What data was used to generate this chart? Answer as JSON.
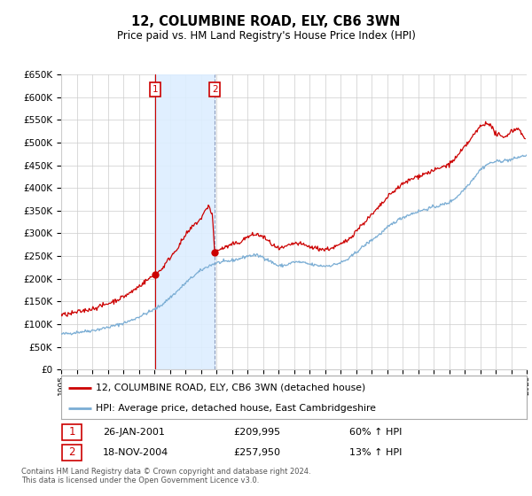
{
  "title": "12, COLUMBINE ROAD, ELY, CB6 3WN",
  "subtitle": "Price paid vs. HM Land Registry's House Price Index (HPI)",
  "legend_line1": "12, COLUMBINE ROAD, ELY, CB6 3WN (detached house)",
  "legend_line2": "HPI: Average price, detached house, East Cambridgeshire",
  "sale1_date": "26-JAN-2001",
  "sale1_price": "£209,995",
  "sale1_hpi": "60% ↑ HPI",
  "sale2_date": "18-NOV-2004",
  "sale2_price": "£257,950",
  "sale2_hpi": "13% ↑ HPI",
  "footnote": "Contains HM Land Registry data © Crown copyright and database right 2024.\nThis data is licensed under the Open Government Licence v3.0.",
  "red_color": "#cc0000",
  "blue_color": "#7aadd4",
  "shade_color": "#ddeeff",
  "grid_color": "#cccccc",
  "background_color": "#ffffff",
  "ylim_min": 0,
  "ylim_max": 650000,
  "x_start_year": 1995,
  "x_end_year": 2025,
  "sale1_year": 2001.07,
  "sale2_year": 2004.89
}
